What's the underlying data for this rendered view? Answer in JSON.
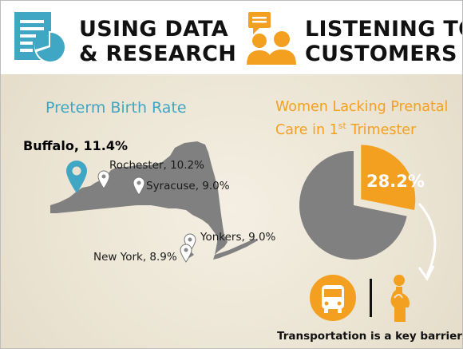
{
  "header": {
    "left_line1": "USING DATA",
    "left_line2": "& RESEARCH",
    "right_line1": "LISTENING TO",
    "right_line2": "CUSTOMERS"
  },
  "left_panel": {
    "title": "Preterm Birth Rate",
    "cities": [
      {
        "label": "Buffalo, 11.4%"
      },
      {
        "label": "Rochester, 10.2%"
      },
      {
        "label": "Syracuse, 9.0%"
      },
      {
        "label": "Yonkers, 9.0%"
      },
      {
        "label": "New York, 8.9%"
      }
    ]
  },
  "right_panel": {
    "title_line1": "Women Lacking Prenatal",
    "title_line2_prefix": "Care in 1",
    "title_line2_sup": "st",
    "title_line2_suffix": " Trimester",
    "pie_value": 28.2,
    "pie_label": "28.2%",
    "footer": "Transportation is a key barrier"
  },
  "icons": [
    "document-chart-icon",
    "speech-people-icon",
    "map-pin-icon",
    "bus-icon",
    "pregnant-woman-icon",
    "curved-arrow-icon"
  ],
  "colors": {
    "blue": "#3fa6c4",
    "orange": "#f3a020",
    "gray": "#808080"
  }
}
